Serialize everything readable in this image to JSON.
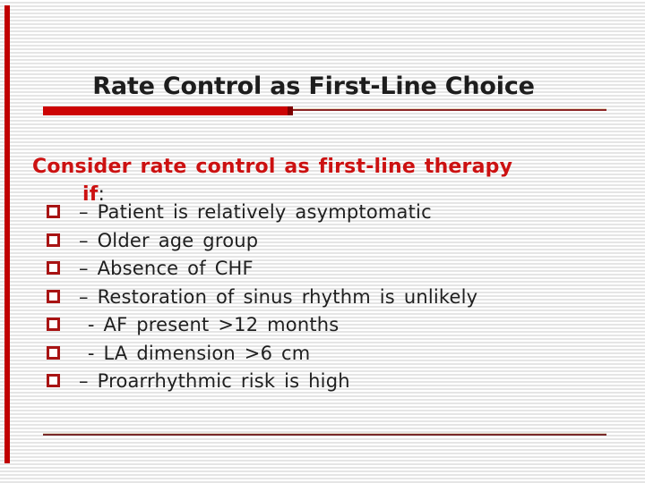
{
  "slide": {
    "title": "Rate Control as First-Line Choice",
    "heading_line1": "Consider rate control as first-line therapy",
    "heading_line2_word": "if",
    "heading_line2_punct": ":",
    "bullets": [
      {
        "text": "– Patient is relatively asymptomatic"
      },
      {
        "text": "– Older age group"
      },
      {
        "text": "– Absence of CHF"
      },
      {
        "text": "– Restoration of sinus rhythm is unlikely"
      },
      {
        "text": " - AF present >12 months"
      },
      {
        "text": " - LA dimension >6 cm"
      },
      {
        "text": "– Proarrhythmic risk is high"
      }
    ],
    "colors": {
      "accent_red": "#cc0404",
      "accent_dark_red_cap": "#7f0000",
      "left_bar_red": "#c00000",
      "thin_line_maroon": "#8b2525",
      "bottom_line_maroon": "#7a2a2a",
      "heading_red": "#cc1111",
      "title_text": "#1d1d1d",
      "body_text": "#1f1f1f",
      "bullet_border_red": "#a81414",
      "background_stripe_gray": "#e5e5e5"
    }
  }
}
